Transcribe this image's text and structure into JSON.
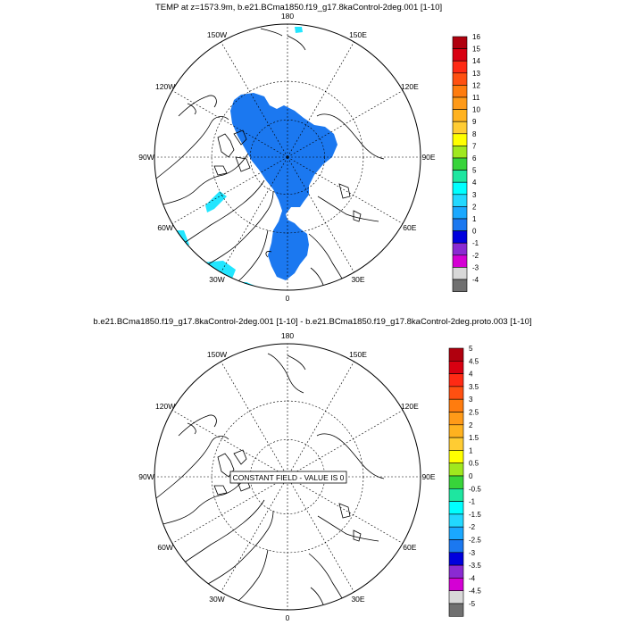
{
  "chart_data": [
    {
      "type": "polar-map",
      "title": "TEMP at z=1573.9m, b.e21.BCma1850.f19_g17.8kaControl-2deg.001 [1-10]",
      "longitude_labels": [
        "180",
        "150E",
        "120E",
        "90E",
        "60E",
        "30E",
        "0",
        "30W",
        "60W",
        "90W",
        "120W",
        "150W"
      ],
      "colorbar": {
        "levels": [
          "16",
          "15",
          "14",
          "13",
          "12",
          "11",
          "10",
          "9",
          "8",
          "7",
          "6",
          "5",
          "4",
          "3",
          "2",
          "1",
          "0",
          "-1",
          "-2",
          "-3",
          "-4"
        ],
        "colors": [
          "#b0000e",
          "#d80011",
          "#ff2a14",
          "#ff5011",
          "#ff7c0e",
          "#ff9a18",
          "#ffb21f",
          "#ffcc33",
          "#ffff00",
          "#a0e81e",
          "#38d43a",
          "#1ee6a0",
          "#00ffff",
          "#22d8ff",
          "#1aa8ff",
          "#1b78f0",
          "#0000dd",
          "#8a2ad2",
          "#d400d4",
          "#d8d8d8",
          "#707070"
        ]
      },
      "fields": [
        {
          "name": "main-cold-region",
          "value_range": "1 to 2",
          "color": "#1b78f0"
        },
        {
          "name": "cyan-patches",
          "value_range": "3 to 5",
          "color": "#22e6ff"
        }
      ]
    },
    {
      "type": "polar-map",
      "title": "b.e21.BCma1850.f19_g17.8kaControl-2deg.001 [1-10] - b.e21.BCma1850.f19_g17.8kaControl-2deg.proto.003 [1-10]",
      "longitude_labels": [
        "180",
        "150E",
        "120E",
        "90E",
        "60E",
        "30E",
        "0",
        "30W",
        "60W",
        "90W",
        "120W",
        "150W"
      ],
      "annotation": "CONSTANT FIELD - VALUE IS 0",
      "colorbar": {
        "levels": [
          "5",
          "4.5",
          "4",
          "3.5",
          "3",
          "2.5",
          "2",
          "1.5",
          "1",
          "0.5",
          "0",
          "-0.5",
          "-1",
          "-1.5",
          "-2",
          "-2.5",
          "-3",
          "-3.5",
          "-4",
          "-4.5",
          "-5"
        ],
        "colors": [
          "#b0000e",
          "#d80011",
          "#ff2a14",
          "#ff5011",
          "#ff7c0e",
          "#ff9a18",
          "#ffb21f",
          "#ffcc33",
          "#ffff00",
          "#a0e81e",
          "#38d43a",
          "#1ee6a0",
          "#00ffff",
          "#22d8ff",
          "#1aa8ff",
          "#1b78f0",
          "#0000dd",
          "#8a2ad2",
          "#d400d4",
          "#d8d8d8",
          "#707070"
        ]
      }
    }
  ]
}
